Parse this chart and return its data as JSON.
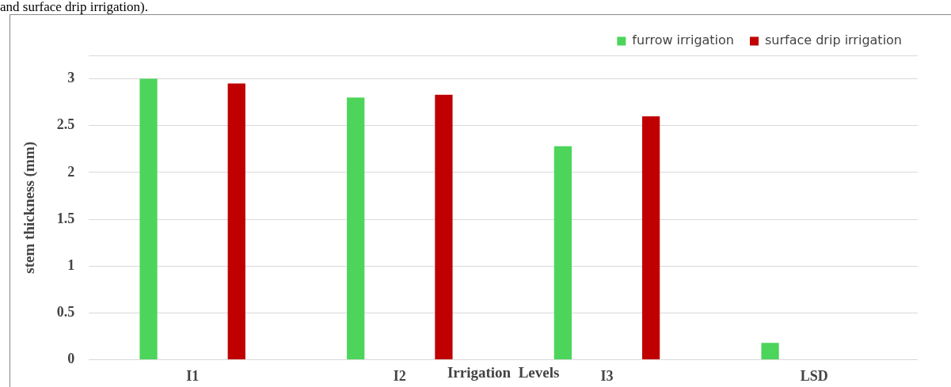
{
  "chart_data": {
    "type": "bar",
    "annotations": [
      "and surface drip irrigation)."
    ],
    "xlabel": "Irrigation  Levels",
    "ylabel": "stem thickness (mm)",
    "categories": [
      "I1",
      "I2",
      "I3",
      "LSD"
    ],
    "series": [
      {
        "name": "furrow irrigation",
        "color": "#4cd55a",
        "values": [
          3.0,
          2.8,
          2.28,
          0.18
        ]
      },
      {
        "name": "surface drip irrigation",
        "color": "#c00000",
        "values": [
          2.95,
          2.83,
          2.6,
          null
        ]
      }
    ],
    "ylim": [
      0,
      3.25
    ],
    "yticks": [
      0,
      0.5,
      1,
      1.5,
      2,
      2.5,
      3,
      {
        "value": 3.25,
        "label": null
      }
    ],
    "grid": "y",
    "legend": "top right"
  }
}
